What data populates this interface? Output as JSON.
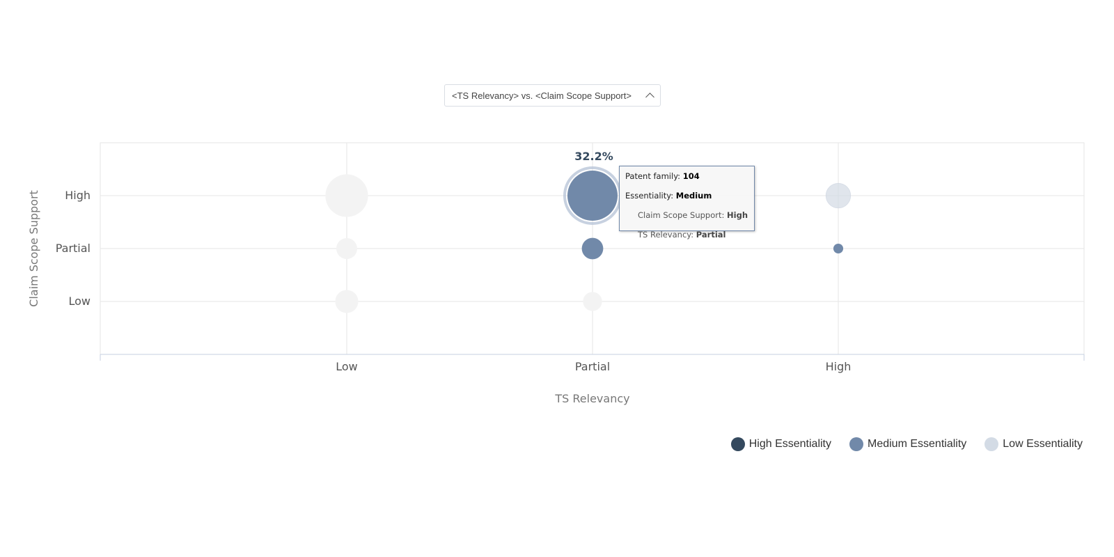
{
  "selector": {
    "label": "<TS Relevancy> vs. <Claim Scope Support>"
  },
  "chart_data": {
    "type": "scatter",
    "xlabel": "TS Relevancy",
    "ylabel": "Claim Scope Support",
    "x_categories": [
      "Low",
      "Partial",
      "High"
    ],
    "y_categories": [
      "Low",
      "Partial",
      "High"
    ],
    "grid": true,
    "legend_position": "bottom-right",
    "series": [
      {
        "name": "High Essentiality",
        "color": "#34495e",
        "points": []
      },
      {
        "name": "Medium Essentiality",
        "color": "#7189a9",
        "points": [
          {
            "x": "Partial",
            "y": "High",
            "value": 104
          },
          {
            "x": "Partial",
            "y": "Partial",
            "value": 19
          },
          {
            "x": "High",
            "y": "Partial",
            "value": 4
          }
        ]
      },
      {
        "name": "Low Essentiality",
        "color": "#d3dbe5",
        "points": [
          {
            "x": "High",
            "y": "High",
            "value": 25
          }
        ]
      },
      {
        "name": "",
        "color": "#f3f3f3",
        "points": [
          {
            "x": "Low",
            "y": "High",
            "value": 75
          },
          {
            "x": "Low",
            "y": "Partial",
            "value": 18
          },
          {
            "x": "Low",
            "y": "Low",
            "value": 22
          },
          {
            "x": "Partial",
            "y": "Low",
            "value": 15
          }
        ]
      }
    ],
    "annotation": {
      "x": "Partial",
      "y": "High",
      "text": "32.2%"
    }
  },
  "tooltip": {
    "rows": [
      {
        "label": "Patent family: ",
        "value": "104"
      },
      {
        "label": "Essentiality: ",
        "value": "Medium"
      },
      {
        "label": "Claim Scope Support: ",
        "value": "High"
      },
      {
        "label": "TS Relevancy: ",
        "value": "Partial"
      }
    ]
  }
}
